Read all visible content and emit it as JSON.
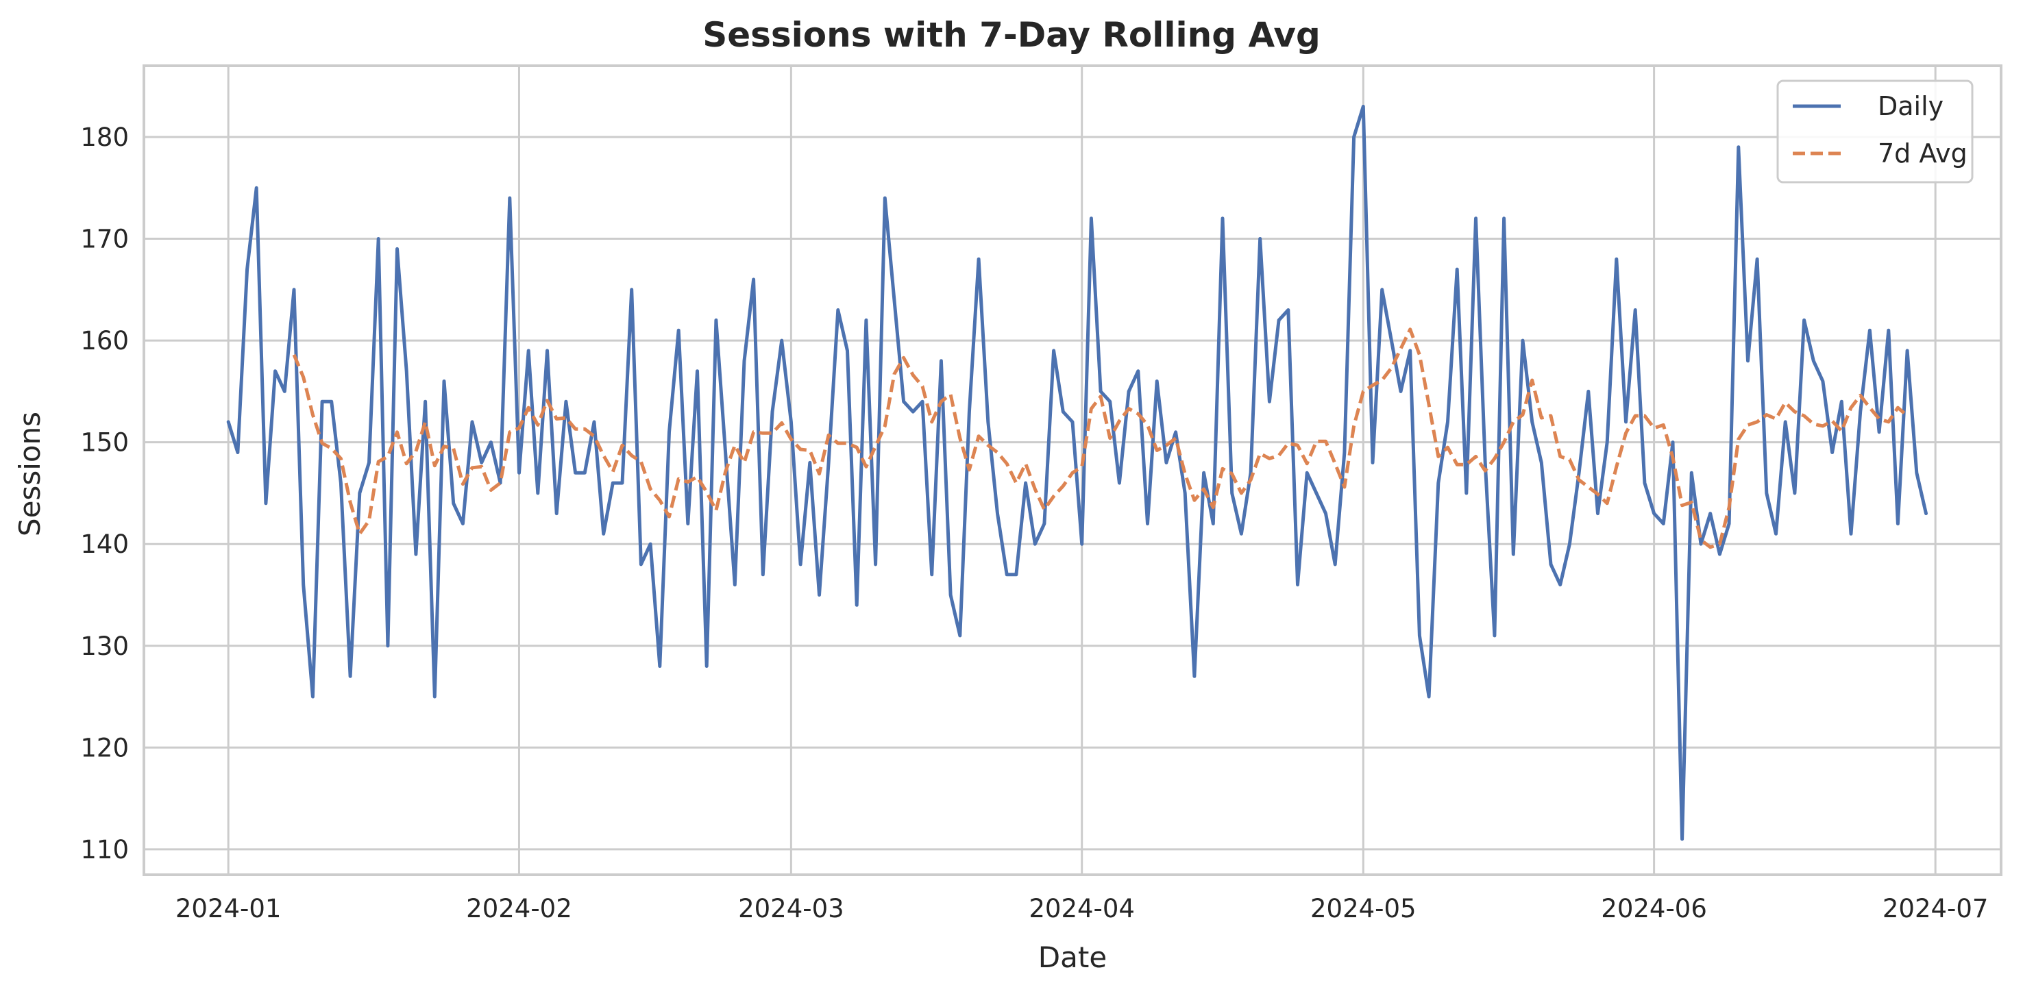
{
  "chart_data": {
    "type": "line",
    "title": "Sessions with 7-Day Rolling Avg",
    "xlabel": "Date",
    "ylabel": "Sessions",
    "x_start": "2024-01-01",
    "x_end": "2024-06-29",
    "xlim": [
      "2023-12-23",
      "2024-07-08"
    ],
    "ylim": [
      107.5,
      187
    ],
    "x_ticks": [
      {
        "date": "2024-01-01",
        "label": "2024-01"
      },
      {
        "date": "2024-02-01",
        "label": "2024-02"
      },
      {
        "date": "2024-03-01",
        "label": "2024-03"
      },
      {
        "date": "2024-04-01",
        "label": "2024-04"
      },
      {
        "date": "2024-05-01",
        "label": "2024-05"
      },
      {
        "date": "2024-06-01",
        "label": "2024-06"
      },
      {
        "date": "2024-07-01",
        "label": "2024-07"
      }
    ],
    "y_ticks": [
      110,
      120,
      130,
      140,
      150,
      160,
      170,
      180
    ],
    "grid": true,
    "legend_position": "top-right",
    "series": [
      {
        "name": "Daily",
        "color": "#4c72b0",
        "style": "solid",
        "values": [
          152,
          149,
          167,
          175,
          144,
          157,
          155,
          165,
          136,
          125,
          154,
          154,
          146,
          127,
          145,
          148,
          170,
          130,
          169,
          157,
          139,
          154,
          125,
          156,
          144,
          142,
          152,
          148,
          150,
          146,
          174,
          147,
          159,
          145,
          159,
          143,
          154,
          147,
          147,
          152,
          141,
          146,
          146,
          165,
          138,
          140,
          128,
          151,
          161,
          142,
          157,
          128,
          162,
          149,
          136,
          158,
          166,
          137,
          153,
          160,
          152,
          138,
          148,
          135,
          148,
          163,
          159,
          134,
          162,
          138,
          174,
          164,
          154,
          153,
          154,
          137,
          158,
          135,
          131,
          153,
          168,
          152,
          143,
          137,
          137,
          146,
          140,
          142,
          159,
          153,
          152,
          140,
          172,
          155,
          154,
          146,
          155,
          157,
          142,
          156,
          148,
          151,
          145,
          127,
          147,
          142,
          172,
          145,
          141,
          147,
          170,
          154,
          162,
          163,
          136,
          147,
          145,
          143,
          138,
          149,
          180,
          183,
          148,
          165,
          160,
          155,
          159,
          131,
          125,
          146,
          152,
          167,
          145,
          172,
          148,
          131,
          172,
          139,
          160,
          152,
          148,
          138,
          136,
          140,
          147,
          155,
          143,
          150,
          168,
          152,
          163,
          146,
          143,
          142,
          150,
          111,
          147,
          140,
          143,
          139,
          142,
          179,
          158,
          168,
          145,
          141,
          152,
          145,
          162,
          158,
          156,
          149,
          154,
          141,
          153,
          161,
          151,
          161,
          142,
          159,
          147,
          143
        ],
        "avg7": [
          null,
          null,
          null,
          null,
          null,
          null,
          null,
          158.6,
          156.4,
          152.7,
          149.9,
          149.4,
          148.4,
          144.1,
          141.0,
          142.3,
          148.1,
          148.6,
          151.0,
          147.9,
          149.1,
          152.0,
          147.7,
          149.6,
          149.4,
          145.9,
          147.5,
          147.6,
          145.3,
          146.0,
          151.0,
          151.4,
          153.4,
          151.7,
          154.1,
          152.3,
          152.4,
          151.3,
          151.3,
          150.6,
          148.7,
          147.1,
          149.7,
          148.7,
          148.1,
          145.4,
          144.3,
          142.7,
          146.4,
          146.1,
          146.6,
          145.1,
          143.3,
          147.1,
          149.7,
          148.0,
          151.0,
          150.9,
          150.9,
          151.9,
          150.3,
          149.3,
          149.2,
          146.9,
          150.7,
          149.9,
          149.9,
          149.5,
          147.6,
          149.6,
          151.6,
          156.7,
          158.3,
          156.6,
          155.5,
          152.0,
          154.0,
          154.7,
          150.4,
          147.3,
          150.6,
          149.7,
          149.0,
          147.9,
          146.0,
          147.9,
          145.4,
          143.4,
          144.7,
          145.7,
          147.0,
          147.6,
          153.3,
          154.5,
          150.4,
          152.1,
          153.3,
          152.8,
          151.7,
          149.2,
          149.7,
          150.4,
          146.9,
          144.3,
          145.4,
          143.6,
          147.4,
          146.9,
          145.0,
          146.3,
          148.9,
          148.4,
          148.7,
          149.9,
          149.7,
          147.9,
          150.1,
          150.1,
          147.9,
          145.6,
          151.6,
          155.0,
          155.6,
          156.1,
          157.3,
          159.2,
          161.1,
          158.6,
          153.7,
          148.6,
          149.5,
          147.8,
          147.8,
          148.6,
          147.2,
          148.4,
          150.0,
          152.0,
          152.7,
          156.1,
          152.4,
          152.6,
          148.6,
          148.3,
          146.3,
          145.6,
          144.9,
          144.0,
          147.6,
          150.9,
          152.6,
          152.6,
          151.4,
          151.7,
          148.5,
          143.8,
          144.1,
          140.4,
          139.7,
          140.0,
          143.6,
          150.3,
          151.7,
          152.0,
          152.7,
          152.3,
          153.9,
          153.0,
          152.6,
          151.8,
          151.6,
          152.1,
          151.1,
          153.4,
          154.6,
          153.4,
          152.3,
          152.0,
          153.4,
          152.6
        ]
      },
      {
        "name": "7d Avg",
        "color": "#dd8452",
        "style": "dashed"
      }
    ]
  }
}
